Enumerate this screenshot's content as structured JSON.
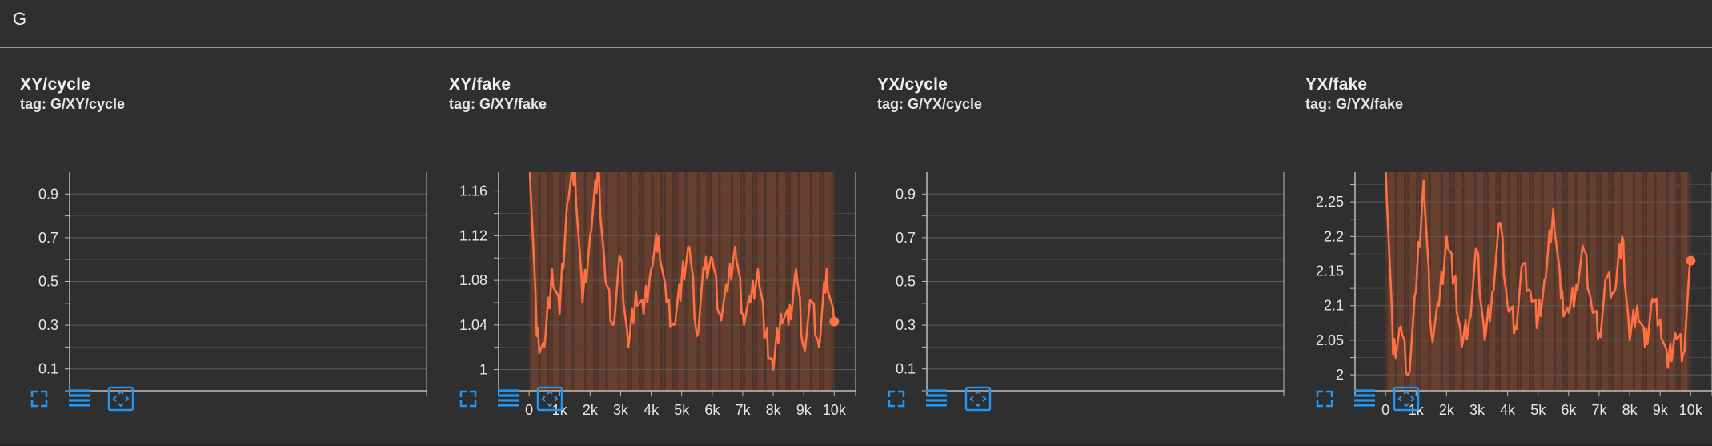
{
  "group": {
    "title": "G"
  },
  "colors": {
    "background": "#2f2f2f",
    "line": "#ff7043",
    "band": "#7a4630",
    "grid": "#5c5c5c",
    "axis": "#bdbdbd",
    "icon": "#2196f3"
  },
  "toolbar": {
    "icons": [
      "fullscreen-icon",
      "data-table-icon",
      "fit-domain-icon"
    ]
  },
  "chart_data": [
    {
      "type": "line",
      "title": "XY/cycle",
      "tag": "tag: G/XY/cycle",
      "ylim": [
        0.0,
        1.0
      ],
      "yticks": [
        "0.9",
        "0.7",
        "0.5",
        "0.3",
        "0.1"
      ],
      "ytick_values": [
        0.9,
        0.7,
        0.5,
        0.3,
        0.1
      ],
      "xticks": [],
      "series": []
    },
    {
      "type": "line",
      "title": "XY/fake",
      "tag": "tag: G/XY/fake",
      "ylim": [
        0.981,
        1.177
      ],
      "xlim": [
        -1000,
        10700
      ],
      "yticks": [
        "1.16",
        "1.12",
        "1.08",
        "1.04",
        "1"
      ],
      "ytick_values": [
        1.16,
        1.12,
        1.08,
        1.04,
        1.0
      ],
      "xticks": [
        "0",
        "1k",
        "2k",
        "3k",
        "4k",
        "5k",
        "6k",
        "7k",
        "8k",
        "9k",
        "10k"
      ],
      "xtick_values": [
        0,
        1000,
        2000,
        3000,
        4000,
        5000,
        6000,
        7000,
        8000,
        9000,
        10000
      ],
      "series": [
        {
          "x": [
            0,
            250,
            500,
            750,
            1000,
            1250,
            1500,
            1750,
            2000,
            2250,
            2500,
            2750,
            3000,
            3250,
            3500,
            3750,
            4000,
            4250,
            4500,
            4750,
            5000,
            5250,
            5500,
            5750,
            6000,
            6250,
            6500,
            6750,
            7000,
            7250,
            7500,
            7750,
            8000,
            8250,
            8500,
            8750,
            9000,
            9250,
            9500,
            9750,
            10000
          ],
          "y": [
            1.2,
            1.03,
            1.02,
            1.09,
            1.05,
            1.15,
            1.18,
            1.06,
            1.12,
            1.18,
            1.08,
            1.04,
            1.1,
            1.02,
            1.07,
            1.05,
            1.09,
            1.12,
            1.06,
            1.04,
            1.08,
            1.11,
            1.03,
            1.09,
            1.1,
            1.05,
            1.07,
            1.11,
            1.05,
            1.06,
            1.09,
            1.03,
            1.0,
            1.05,
            1.04,
            1.09,
            1.02,
            1.06,
            1.02,
            1.09,
            1.04
          ],
          "end_value": 1.043
        }
      ]
    },
    {
      "type": "line",
      "title": "YX/cycle",
      "tag": "tag: G/YX/cycle",
      "ylim": [
        0.0,
        1.0
      ],
      "yticks": [
        "0.9",
        "0.7",
        "0.5",
        "0.3",
        "0.1"
      ],
      "ytick_values": [
        0.9,
        0.7,
        0.5,
        0.3,
        0.1
      ],
      "xticks": [],
      "series": []
    },
    {
      "type": "line",
      "title": "YX/fake",
      "tag": "tag: G/YX/fake",
      "ylim": [
        1.977,
        2.293
      ],
      "xlim": [
        -1000,
        10700
      ],
      "yticks": [
        "2.25",
        "2.2",
        "2.15",
        "2.1",
        "2.05",
        "2"
      ],
      "ytick_values": [
        2.25,
        2.2,
        2.15,
        2.1,
        2.05,
        2.0
      ],
      "xticks": [
        "0",
        "1k",
        "2k",
        "3k",
        "4k",
        "5k",
        "6k",
        "7k",
        "8k",
        "9k",
        "10k"
      ],
      "xtick_values": [
        0,
        1000,
        2000,
        3000,
        4000,
        5000,
        6000,
        7000,
        8000,
        9000,
        10000
      ],
      "series": [
        {
          "x": [
            0,
            250,
            500,
            750,
            1000,
            1250,
            1500,
            1750,
            2000,
            2250,
            2500,
            2750,
            3000,
            3250,
            3500,
            3750,
            4000,
            4250,
            4500,
            4750,
            5000,
            5250,
            5500,
            5750,
            6000,
            6250,
            6500,
            6750,
            7000,
            7250,
            7500,
            7750,
            8000,
            8250,
            8500,
            8750,
            9000,
            9250,
            9500,
            9750,
            10000
          ],
          "y": [
            2.31,
            2.03,
            2.07,
            2.0,
            2.12,
            2.28,
            2.06,
            2.1,
            2.2,
            2.14,
            2.04,
            2.08,
            2.18,
            2.05,
            2.12,
            2.22,
            2.1,
            2.07,
            2.16,
            2.12,
            2.08,
            2.14,
            2.24,
            2.11,
            2.09,
            2.13,
            2.18,
            2.1,
            2.06,
            2.14,
            2.12,
            2.2,
            2.05,
            2.1,
            2.04,
            2.11,
            2.08,
            2.01,
            2.06,
            2.03,
            2.165
          ],
          "end_value": 2.165
        }
      ]
    }
  ]
}
